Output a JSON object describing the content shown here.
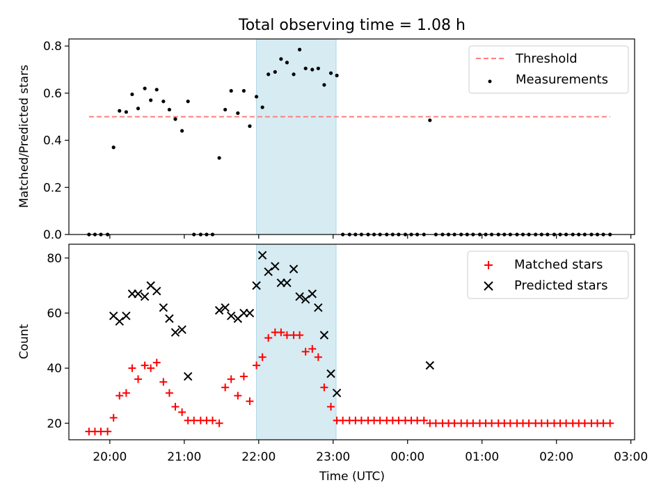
{
  "chart_data": [
    {
      "type": "scatter",
      "title": "Total observing time = 1.08 h",
      "ylabel": "Matched/Predicted stars",
      "xlabel": "",
      "ylim": [
        0,
        0.83
      ],
      "yticks": [
        0.0,
        0.2,
        0.4,
        0.6,
        0.8
      ],
      "ytick_labels": [
        "0.0",
        "0.2",
        "0.4",
        "0.6",
        "0.8"
      ],
      "xlim_hours": [
        19.45,
        27.05
      ],
      "xticks_hours": [
        20,
        21,
        22,
        23,
        24,
        25,
        26,
        27
      ],
      "x_tick_labels_shown": false,
      "shaded_interval_hours": [
        21.97,
        23.04
      ],
      "legend": {
        "placement": "upper right",
        "entries": [
          {
            "label": "Threshold",
            "style": "dashed-line",
            "color": "#ff7f7f"
          },
          {
            "label": "Measurements",
            "style": "dot",
            "color": "#000000"
          }
        ]
      },
      "threshold": {
        "name": "Threshold",
        "y": 0.5,
        "x_range_hours": [
          19.72,
          26.72
        ]
      },
      "series": [
        {
          "name": "Measurements",
          "color": "#000000",
          "x": [
            19.72,
            19.8,
            19.88,
            19.97,
            20.05,
            20.13,
            20.22,
            20.3,
            20.38,
            20.47,
            20.55,
            20.63,
            20.72,
            20.8,
            20.88,
            20.97,
            21.05,
            21.13,
            21.22,
            21.3,
            21.38,
            21.47,
            21.55,
            21.63,
            21.72,
            21.8,
            21.88,
            21.97,
            22.05,
            22.13,
            22.22,
            22.3,
            22.38,
            22.47,
            22.55,
            22.63,
            22.72,
            22.8,
            22.88,
            22.97,
            23.05,
            23.13,
            23.22,
            23.3,
            23.38,
            23.47,
            23.55,
            23.63,
            23.72,
            23.8,
            23.88,
            23.97,
            24.05,
            24.13,
            24.22,
            24.3,
            24.38,
            24.47,
            24.55,
            24.63,
            24.72,
            24.8,
            24.88,
            24.97,
            25.05,
            25.13,
            25.22,
            25.3,
            25.38,
            25.47,
            25.55,
            25.63,
            25.72,
            25.8,
            25.88,
            25.97,
            26.05,
            26.13,
            26.22,
            26.3,
            26.38,
            26.47,
            26.55,
            26.63,
            26.72
          ],
          "y": [
            0,
            0,
            0,
            0,
            0.37,
            0.525,
            0.52,
            0.595,
            0.535,
            0.62,
            0.57,
            0.615,
            0.565,
            0.53,
            0.49,
            0.44,
            0.565,
            0,
            0,
            0,
            0,
            0.325,
            0.53,
            0.61,
            0.515,
            0.61,
            0.46,
            0.585,
            0.54,
            0.68,
            0.69,
            0.745,
            0.73,
            0.68,
            0.785,
            0.705,
            0.7,
            0.705,
            0.635,
            0.685,
            0.675,
            0,
            0,
            0,
            0,
            0,
            0,
            0,
            0,
            0,
            0,
            0,
            0,
            0,
            0,
            0.485,
            0,
            0,
            0,
            0,
            0,
            0,
            0,
            0,
            0,
            0,
            0,
            0,
            0,
            0,
            0,
            0,
            0,
            0,
            0,
            0,
            0,
            0,
            0,
            0,
            0,
            0,
            0,
            0,
            0
          ]
        }
      ]
    },
    {
      "type": "scatter",
      "title": "",
      "xlabel": "Time (UTC)",
      "ylabel": "Count",
      "ylim": [
        14,
        85
      ],
      "yticks": [
        20,
        40,
        60,
        80
      ],
      "ytick_labels": [
        "20",
        "40",
        "60",
        "80"
      ],
      "xlim_hours": [
        19.45,
        27.05
      ],
      "xticks_hours": [
        20,
        21,
        22,
        23,
        24,
        25,
        26,
        27
      ],
      "xtick_labels": [
        "20:00",
        "21:00",
        "22:00",
        "23:00",
        "00:00",
        "01:00",
        "02:00",
        "03:00"
      ],
      "shaded_interval_hours": [
        21.97,
        23.04
      ],
      "legend": {
        "placement": "upper right",
        "entries": [
          {
            "label": "Matched stars",
            "style": "plus",
            "color": "#ff0000"
          },
          {
            "label": "Predicted stars",
            "style": "x",
            "color": "#000000"
          }
        ]
      },
      "series": [
        {
          "name": "Matched stars",
          "marker": "plus",
          "color": "#ff0000",
          "x": [
            19.72,
            19.8,
            19.88,
            19.97,
            20.05,
            20.13,
            20.22,
            20.3,
            20.38,
            20.47,
            20.55,
            20.63,
            20.72,
            20.8,
            20.88,
            20.97,
            21.05,
            21.13,
            21.22,
            21.3,
            21.38,
            21.47,
            21.55,
            21.63,
            21.72,
            21.8,
            21.88,
            21.97,
            22.05,
            22.13,
            22.22,
            22.3,
            22.38,
            22.47,
            22.55,
            22.63,
            22.72,
            22.8,
            22.88,
            22.97,
            23.05,
            23.13,
            23.22,
            23.3,
            23.38,
            23.47,
            23.55,
            23.63,
            23.72,
            23.8,
            23.88,
            23.97,
            24.05,
            24.13,
            24.22,
            24.3,
            24.38,
            24.47,
            24.55,
            24.63,
            24.72,
            24.8,
            24.88,
            24.97,
            25.05,
            25.13,
            25.22,
            25.3,
            25.38,
            25.47,
            25.55,
            25.63,
            25.72,
            25.8,
            25.88,
            25.97,
            26.05,
            26.13,
            26.22,
            26.3,
            26.38,
            26.47,
            26.55,
            26.63,
            26.72
          ],
          "y": [
            17,
            17,
            17,
            17,
            22,
            30,
            31,
            40,
            36,
            41,
            40,
            42,
            35,
            31,
            26,
            24,
            21,
            21,
            21,
            21,
            21,
            20,
            33,
            36,
            30,
            37,
            28,
            41,
            44,
            51,
            53,
            53,
            52,
            52,
            52,
            46,
            47,
            44,
            33,
            26,
            21,
            21,
            21,
            21,
            21,
            21,
            21,
            21,
            21,
            21,
            21,
            21,
            21,
            21,
            21,
            20,
            20,
            20,
            20,
            20,
            20,
            20,
            20,
            20,
            20,
            20,
            20,
            20,
            20,
            20,
            20,
            20,
            20,
            20,
            20,
            20,
            20,
            20,
            20,
            20,
            20,
            20,
            20,
            20,
            20
          ]
        },
        {
          "name": "Predicted stars",
          "marker": "x",
          "color": "#000000",
          "x": [
            20.05,
            20.13,
            20.22,
            20.3,
            20.38,
            20.47,
            20.55,
            20.63,
            20.72,
            20.8,
            20.88,
            20.97,
            21.05,
            21.47,
            21.55,
            21.63,
            21.72,
            21.8,
            21.88,
            21.97,
            22.05,
            22.13,
            22.22,
            22.3,
            22.38,
            22.47,
            22.55,
            22.63,
            22.72,
            22.8,
            22.88,
            22.97,
            23.05,
            24.3
          ],
          "y": [
            59,
            57,
            59,
            67,
            67,
            66,
            70,
            68,
            62,
            58,
            53,
            54,
            37,
            61,
            62,
            59,
            58,
            60,
            60,
            70,
            81,
            75,
            77,
            71,
            71,
            76,
            66,
            65,
            67,
            62,
            52,
            38,
            31,
            41
          ]
        }
      ]
    }
  ]
}
